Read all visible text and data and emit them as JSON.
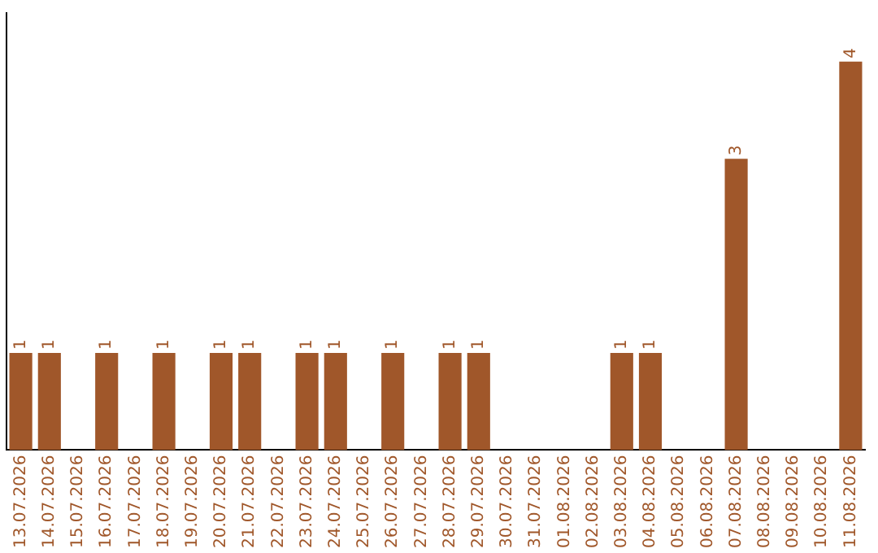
{
  "chart_data": {
    "type": "bar",
    "categories": [
      "13.07.2026",
      "14.07.2026",
      "15.07.2026",
      "16.07.2026",
      "17.07.2026",
      "18.07.2026",
      "19.07.2026",
      "20.07.2026",
      "21.07.2026",
      "22.07.2026",
      "23.07.2026",
      "24.07.2026",
      "25.07.2026",
      "26.07.2026",
      "27.07.2026",
      "28.07.2026",
      "29.07.2026",
      "30.07.2026",
      "31.07.2026",
      "01.08.2026",
      "02.08.2026",
      "03.08.2026",
      "04.08.2026",
      "05.08.2026",
      "06.08.2026",
      "07.08.2026",
      "08.08.2026",
      "09.08.2026",
      "10.08.2026",
      "11.08.2026"
    ],
    "values": [
      1,
      1,
      0,
      1,
      0,
      1,
      0,
      1,
      1,
      0,
      1,
      1,
      0,
      1,
      0,
      1,
      1,
      0,
      0,
      0,
      0,
      1,
      1,
      0,
      0,
      3,
      0,
      0,
      0,
      4
    ],
    "value_labels": [
      "1",
      "1",
      null,
      "1",
      null,
      "1",
      null,
      "1",
      "1",
      null,
      "1",
      "1",
      null,
      "1",
      null,
      "1",
      "1",
      null,
      null,
      null,
      null,
      "1",
      "1",
      null,
      null,
      "3",
      null,
      null,
      null,
      "4"
    ],
    "color": "#a0572a",
    "tick_labels": "x",
    "grid": false,
    "legend": false
  }
}
